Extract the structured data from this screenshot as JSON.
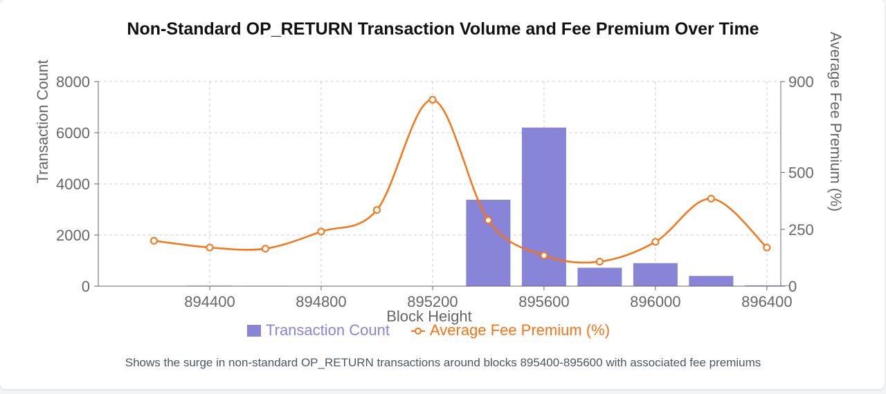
{
  "title": "Non-Standard OP_RETURN Transaction Volume and Fee Premium Over Time",
  "caption": "Shows the surge in non-standard OP_RETURN transactions around blocks 895400-895600 with associated fee premiums",
  "colors": {
    "bar": "#8884d8",
    "line": "#f97316",
    "grid": "#cccccc",
    "axis": "#666666"
  },
  "chart_data": {
    "type": "bar",
    "xlabel": "Block Height",
    "ylabel_left": "Transaction Count",
    "ylabel_right": "Average Fee Premium (%)",
    "x_ticks": [
      894400,
      894800,
      895200,
      895600,
      896000,
      896400
    ],
    "x_range": [
      894000,
      896450
    ],
    "ylim_left": [
      0,
      8000
    ],
    "left_ticks": [
      0,
      2000,
      4000,
      6000,
      8000
    ],
    "ylim_right": [
      0,
      900
    ],
    "right_ticks": [
      0,
      250,
      500,
      900
    ],
    "grid": true,
    "legend_position": "bottom",
    "categories": [
      894200,
      894400,
      894600,
      894800,
      895000,
      895200,
      895400,
      895600,
      895800,
      896000,
      896200,
      896400
    ],
    "series": [
      {
        "name": "Transaction Count",
        "type": "bar",
        "axis": "left",
        "values": [
          10,
          20,
          15,
          5,
          5,
          10,
          3380,
          6200,
          720,
          900,
          400,
          30
        ]
      },
      {
        "name": "Average Fee Premium (%)",
        "type": "line",
        "axis": "right",
        "values": [
          200,
          170,
          165,
          240,
          335,
          820,
          290,
          135,
          108,
          195,
          385,
          170
        ]
      }
    ]
  }
}
